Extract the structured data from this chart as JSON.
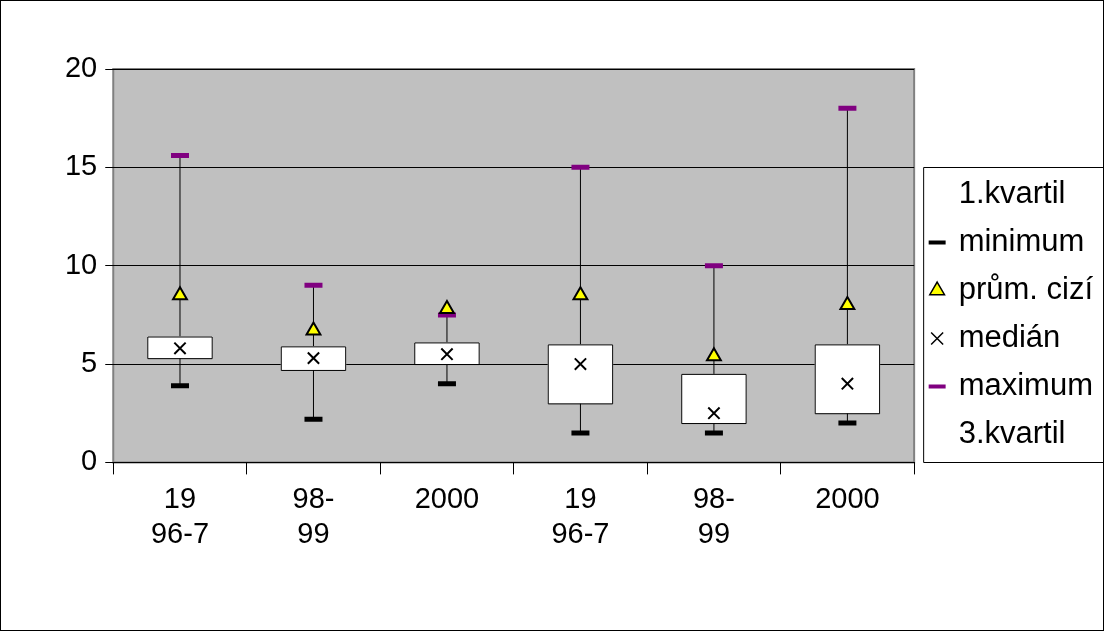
{
  "chart_data": {
    "type": "box",
    "categories": [
      "19\n96-7",
      "98-\n99",
      "2000",
      "19\n96-7",
      "98-\n99",
      "2000"
    ],
    "boxes": [
      {
        "low": 3.9,
        "q1": 5.3,
        "median": 5.8,
        "q3": 6.4,
        "high": 15.6,
        "mean": 8.5
      },
      {
        "low": 2.2,
        "q1": 4.7,
        "median": 5.3,
        "q3": 5.9,
        "high": 9.0,
        "mean": 6.7
      },
      {
        "low": 4.0,
        "q1": 5.0,
        "median": 5.5,
        "q3": 6.1,
        "high": 7.5,
        "mean": 7.8
      },
      {
        "low": 1.5,
        "q1": 3.0,
        "median": 5.0,
        "q3": 6.0,
        "high": 15.0,
        "mean": 8.5
      },
      {
        "low": 1.5,
        "q1": 2.0,
        "median": 2.5,
        "q3": 4.5,
        "high": 10.0,
        "mean": 5.4
      },
      {
        "low": 2.0,
        "q1": 2.5,
        "median": 4.0,
        "q3": 6.0,
        "high": 18.0,
        "mean": 8.0
      }
    ],
    "series": [
      {
        "name": "1.kvartil",
        "marker": "none",
        "values": [
          null,
          null,
          null,
          null,
          null,
          null
        ]
      },
      {
        "name": "minimum",
        "color": "#000000",
        "values": [
          null,
          null,
          null,
          null,
          null,
          null
        ]
      },
      {
        "name": "prům. cizí",
        "color": "#ffff00",
        "marker": "triangle",
        "values": [
          null,
          null,
          null,
          null,
          null,
          null
        ]
      },
      {
        "name": "medián",
        "color": "#000000",
        "marker": "cross",
        "values": [
          null,
          null,
          null,
          null,
          null,
          null
        ]
      },
      {
        "name": "maximum",
        "color": "#800080",
        "values": [
          null,
          null,
          null,
          null,
          null,
          null
        ]
      },
      {
        "name": "3.kvartil",
        "marker": "none",
        "values": [
          null,
          null,
          null,
          null,
          null,
          null
        ]
      }
    ],
    "ylim": [
      0,
      20
    ],
    "yticks": [
      0,
      5,
      10,
      15,
      20
    ],
    "grid": "y",
    "legend": "right"
  }
}
